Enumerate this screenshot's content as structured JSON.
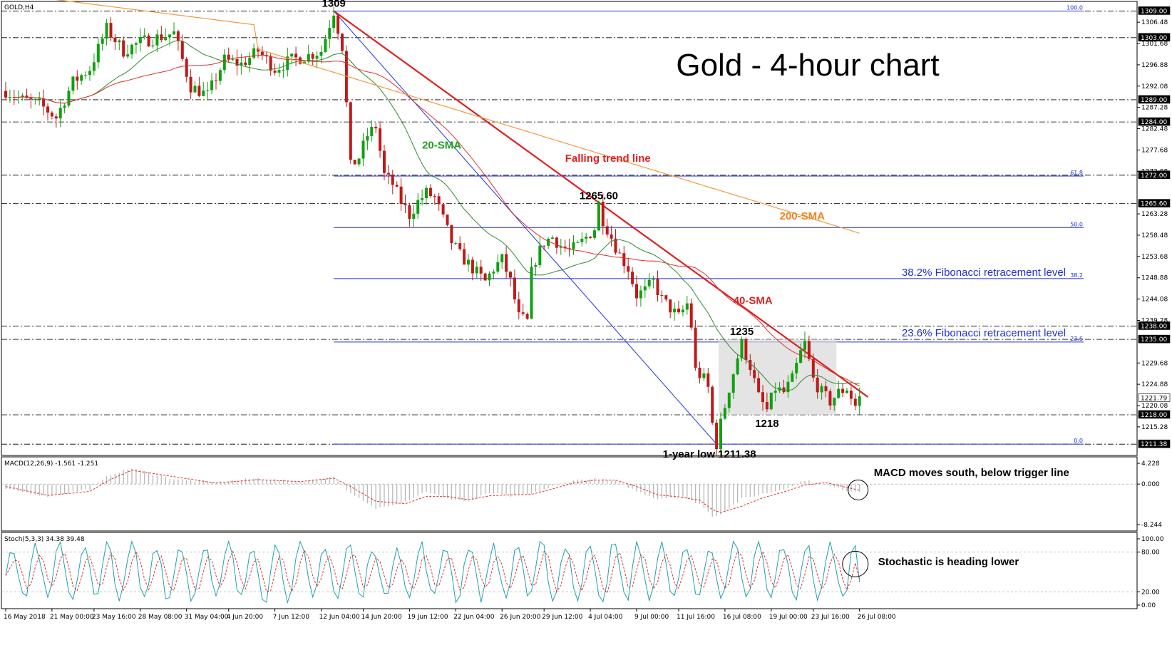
{
  "chart_data": [
    {
      "type": "candlestick",
      "symbol_label": "GOLD,H4",
      "title": "Gold - 4-hour chart",
      "ylim": [
        1209.0,
        1311.0
      ],
      "y_ticks": [
        "1306.48",
        "1301.68",
        "1296.88",
        "1292.08",
        "1287.28",
        "1282.48",
        "1277.68",
        "1272.88",
        "1263.28",
        "1258.48",
        "1253.68",
        "1248.88",
        "1244.08",
        "1239.28",
        "1229.68",
        "1224.88",
        "1220.08",
        "1215.28"
      ],
      "price_tags": [
        {
          "value": 1309.0,
          "label": "1309.00"
        },
        {
          "value": 1303.0,
          "label": "1303.00"
        },
        {
          "value": 1289.0,
          "label": "1289.00"
        },
        {
          "value": 1284.0,
          "label": "1284.00"
        },
        {
          "value": 1272.0,
          "label": "1272.00"
        },
        {
          "value": 1265.6,
          "label": "1265.60"
        },
        {
          "value": 1238.0,
          "label": "1238.00"
        },
        {
          "value": 1235.0,
          "label": "1235.00"
        },
        {
          "value": 1221.79,
          "label": "1221.79"
        },
        {
          "value": 1218.0,
          "label": "1218.00"
        },
        {
          "value": 1211.38,
          "label": "1211.38"
        }
      ],
      "fibonacci": [
        {
          "level": "100.0",
          "price": 1309.0
        },
        {
          "level": "61.8",
          "price": 1271.8
        },
        {
          "level": "50.0",
          "price": 1260.2
        },
        {
          "level": "38.2",
          "price": 1248.7
        },
        {
          "level": "23.6",
          "price": 1234.4
        },
        {
          "level": "0.0",
          "price": 1211.38
        }
      ],
      "x_ticks": [
        "16 May 2018",
        "21 May 00:00",
        "23 May 16:00",
        "28 May 08:00",
        "31 May 04:00",
        "4 Jun 20:00",
        "7 Jun 12:00",
        "12 Jun 04:00",
        "14 Jun 20:00",
        "19 Jun 12:00",
        "22 Jun 04:00",
        "26 Jun 20:00",
        "29 Jun 12:00",
        "4 Jul 04:00",
        "9 Jul 00:00",
        "11 Jul 16:00",
        "16 Jul 08:00",
        "19 Jul 00:00",
        "23 Jul 16:00",
        "26 Jul 08:00"
      ],
      "key_points": [
        {
          "label": "1309",
          "bar": 78,
          "price": 1309.0
        },
        {
          "label": "1265.60",
          "bar": 141,
          "price": 1265.6
        },
        {
          "label": "1235",
          "bar": 175,
          "price": 1235.0
        },
        {
          "label": "1218",
          "bar": 181,
          "price": 1218.0
        },
        {
          "label": "1-year low 1211.38",
          "bar": 169,
          "price": 1211.38
        }
      ],
      "trend_line": {
        "label": "Falling trend line",
        "from": {
          "bar": 78,
          "price": 1309
        },
        "to": {
          "bar": 205,
          "price": 1222
        }
      },
      "channel_line": {
        "from": {
          "bar": 78,
          "price": 1309
        },
        "to": {
          "bar": 169,
          "price": 1211.4
        }
      },
      "range_box": {
        "bar_from": 170,
        "bar_to": 197,
        "price_top": 1235.0,
        "price_bottom": 1218.0
      },
      "annotations": {
        "sma20": "20-SMA",
        "sma40": "40-SMA",
        "sma200": "200-SMA",
        "trend": "Falling trend line",
        "fib382": "38.2% Fibonacci retracement level",
        "fib236": "23.6% Fibonacci retracement level",
        "macd_note": "MACD moves south, below trigger line",
        "stoch_note": "Stochastic is heading lower"
      },
      "series": [
        {
          "name": "20-SMA",
          "color": "#2e8b2e"
        },
        {
          "name": "40-SMA",
          "color": "#e03030"
        },
        {
          "name": "200-SMA",
          "color": "#f39a3c"
        }
      ],
      "price_path": [
        [
          0,
          1291
        ],
        [
          4,
          1289
        ],
        [
          8,
          1288
        ],
        [
          12,
          1285
        ],
        [
          16,
          1293
        ],
        [
          20,
          1296
        ],
        [
          24,
          1305
        ],
        [
          28,
          1300
        ],
        [
          32,
          1302
        ],
        [
          36,
          1303
        ],
        [
          40,
          1304
        ],
        [
          44,
          1292
        ],
        [
          48,
          1290
        ],
        [
          52,
          1298
        ],
        [
          56,
          1297
        ],
        [
          60,
          1300
        ],
        [
          64,
          1296
        ],
        [
          68,
          1298
        ],
        [
          72,
          1299
        ],
        [
          75,
          1300
        ],
        [
          78,
          1309
        ],
        [
          80,
          1301
        ],
        [
          81,
          1288
        ],
        [
          82,
          1274
        ],
        [
          84,
          1276
        ],
        [
          86,
          1281
        ],
        [
          88,
          1283
        ],
        [
          90,
          1272
        ],
        [
          92,
          1270
        ],
        [
          94,
          1266
        ],
        [
          96,
          1263
        ],
        [
          98,
          1266
        ],
        [
          100,
          1268
        ],
        [
          102,
          1267
        ],
        [
          104,
          1262
        ],
        [
          106,
          1257
        ],
        [
          108,
          1254
        ],
        [
          110,
          1252
        ],
        [
          112,
          1250
        ],
        [
          114,
          1248
        ],
        [
          116,
          1251
        ],
        [
          118,
          1253
        ],
        [
          120,
          1248
        ],
        [
          122,
          1240
        ],
        [
          124,
          1239
        ],
        [
          125,
          1250
        ],
        [
          126,
          1253
        ],
        [
          128,
          1257
        ],
        [
          130,
          1258
        ],
        [
          132,
          1256
        ],
        [
          134,
          1255
        ],
        [
          136,
          1256
        ],
        [
          138,
          1258
        ],
        [
          140,
          1260
        ],
        [
          141,
          1265.6
        ],
        [
          142,
          1262
        ],
        [
          144,
          1258
        ],
        [
          146,
          1254
        ],
        [
          148,
          1251
        ],
        [
          150,
          1245
        ],
        [
          152,
          1246
        ],
        [
          154,
          1248
        ],
        [
          156,
          1244
        ],
        [
          158,
          1242
        ],
        [
          160,
          1240
        ],
        [
          162,
          1243
        ],
        [
          163,
          1238
        ],
        [
          164,
          1228
        ],
        [
          166,
          1226
        ],
        [
          167,
          1224
        ],
        [
          168,
          1216
        ],
        [
          169,
          1211.4
        ],
        [
          170,
          1216
        ],
        [
          172,
          1224
        ],
        [
          174,
          1231
        ],
        [
          175,
          1234
        ],
        [
          177,
          1229
        ],
        [
          179,
          1222
        ],
        [
          181,
          1219
        ],
        [
          183,
          1224
        ],
        [
          185,
          1223
        ],
        [
          187,
          1226
        ],
        [
          189,
          1232
        ],
        [
          190,
          1234
        ],
        [
          192,
          1226
        ],
        [
          194,
          1223
        ],
        [
          196,
          1221
        ],
        [
          198,
          1223
        ],
        [
          200,
          1224
        ],
        [
          202,
          1220
        ],
        [
          203,
          1221.79
        ]
      ]
    },
    {
      "type": "line",
      "title": "MACD(12,26,9) -1.561 -1.251",
      "ylim": [
        -8.244,
        4.228
      ],
      "y_ticks": [
        "4.228",
        "0.000",
        "-8.244"
      ],
      "series": [
        {
          "name": "MACD(12,26,9)",
          "color": "#c8c8c8",
          "style": "histogram"
        },
        {
          "name": "signal",
          "color": "#e03030",
          "style": "dashed"
        }
      ],
      "macd_path": [
        [
          0,
          -1
        ],
        [
          10,
          -2.5
        ],
        [
          20,
          -1
        ],
        [
          25,
          2
        ],
        [
          30,
          3.2
        ],
        [
          40,
          1
        ],
        [
          50,
          0.3
        ],
        [
          60,
          1.2
        ],
        [
          70,
          0.4
        ],
        [
          78,
          1.5
        ],
        [
          82,
          -2
        ],
        [
          88,
          -5
        ],
        [
          95,
          -3.5
        ],
        [
          100,
          -1.5
        ],
        [
          105,
          -3
        ],
        [
          110,
          -3.5
        ],
        [
          115,
          -1.8
        ],
        [
          120,
          -2.5
        ],
        [
          125,
          -2
        ],
        [
          130,
          -0.5
        ],
        [
          135,
          0.8
        ],
        [
          140,
          1
        ],
        [
          145,
          0.6
        ],
        [
          150,
          -1.5
        ],
        [
          155,
          -3
        ],
        [
          160,
          -2.5
        ],
        [
          165,
          -4
        ],
        [
          168,
          -6.5
        ],
        [
          170,
          -6.2
        ],
        [
          175,
          -3
        ],
        [
          180,
          -2
        ],
        [
          185,
          -1
        ],
        [
          190,
          0.8
        ],
        [
          195,
          -0.3
        ],
        [
          200,
          -1.3
        ],
        [
          203,
          -1.561
        ]
      ],
      "signal_path": [
        [
          0,
          -0.5
        ],
        [
          10,
          -2.3
        ],
        [
          20,
          -1.5
        ],
        [
          25,
          1
        ],
        [
          30,
          2.8
        ],
        [
          40,
          1.5
        ],
        [
          50,
          0.2
        ],
        [
          60,
          0.9
        ],
        [
          70,
          0.5
        ],
        [
          78,
          1.2
        ],
        [
          82,
          -0.5
        ],
        [
          88,
          -3.5
        ],
        [
          95,
          -4
        ],
        [
          100,
          -2.5
        ],
        [
          105,
          -2.5
        ],
        [
          110,
          -3.2
        ],
        [
          115,
          -2.4
        ],
        [
          120,
          -2.2
        ],
        [
          125,
          -2.1
        ],
        [
          130,
          -1
        ],
        [
          135,
          0.2
        ],
        [
          140,
          0.8
        ],
        [
          145,
          0.8
        ],
        [
          150,
          -0.5
        ],
        [
          155,
          -2.2
        ],
        [
          160,
          -2.6
        ],
        [
          165,
          -3.3
        ],
        [
          168,
          -5.2
        ],
        [
          170,
          -5.8
        ],
        [
          175,
          -4.5
        ],
        [
          180,
          -2.8
        ],
        [
          185,
          -1.6
        ],
        [
          190,
          -0.2
        ],
        [
          195,
          0.3
        ],
        [
          200,
          -0.7
        ],
        [
          203,
          -1.251
        ]
      ]
    },
    {
      "type": "line",
      "title": "Stoch(5,3,3) 34.38 39.48",
      "ylim": [
        0,
        100
      ],
      "y_ticks": [
        "100.00",
        "80.00",
        "20.00",
        "0.00"
      ],
      "series": [
        {
          "name": "%K",
          "color": "#20a0b0"
        },
        {
          "name": "%D",
          "color": "#e03030",
          "style": "dashed"
        }
      ],
      "k_period_bars": 6,
      "k_last": 34.38,
      "d_last": 39.48
    }
  ]
}
